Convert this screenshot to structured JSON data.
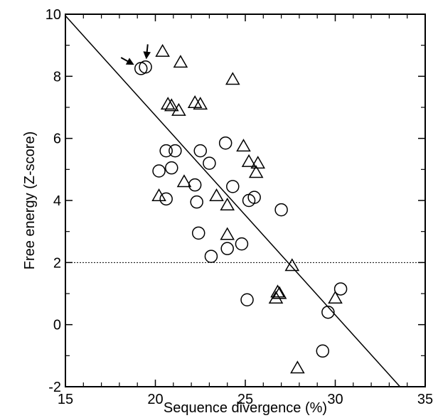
{
  "chart_data": {
    "type": "scatter",
    "title": "",
    "xlabel": "Sequence divergence (%)",
    "ylabel": "Free energy (Z-score)",
    "xlim": [
      15,
      35
    ],
    "ylim": [
      -2,
      10
    ],
    "xticks": [
      15,
      20,
      25,
      30,
      35
    ],
    "yticks": [
      -2,
      0,
      2,
      4,
      6,
      8,
      10
    ],
    "grid": false,
    "series": [
      {
        "marker": "circle",
        "points": [
          [
            19.2,
            8.25
          ],
          [
            19.45,
            8.3
          ],
          [
            20.2,
            4.95
          ],
          [
            20.6,
            5.6
          ],
          [
            20.6,
            4.05
          ],
          [
            20.9,
            5.05
          ],
          [
            21.1,
            5.6
          ],
          [
            22.2,
            4.5
          ],
          [
            22.3,
            3.95
          ],
          [
            22.4,
            2.95
          ],
          [
            22.5,
            5.6
          ],
          [
            23.0,
            5.2
          ],
          [
            23.1,
            2.2
          ],
          [
            23.9,
            5.85
          ],
          [
            24.0,
            2.45
          ],
          [
            24.3,
            4.45
          ],
          [
            24.8,
            2.6
          ],
          [
            25.1,
            0.8
          ],
          [
            25.2,
            4.0
          ],
          [
            25.5,
            4.1
          ],
          [
            27.0,
            3.7
          ],
          [
            29.3,
            -0.85
          ],
          [
            29.6,
            0.4
          ],
          [
            30.3,
            1.15
          ]
        ]
      },
      {
        "marker": "triangle",
        "points": [
          [
            20.4,
            8.8
          ],
          [
            20.2,
            4.15
          ],
          [
            20.7,
            7.1
          ],
          [
            20.9,
            7.05
          ],
          [
            21.3,
            6.9
          ],
          [
            21.4,
            8.45
          ],
          [
            21.6,
            4.6
          ],
          [
            22.2,
            7.15
          ],
          [
            22.5,
            7.1
          ],
          [
            23.4,
            4.15
          ],
          [
            24.0,
            3.85
          ],
          [
            24.0,
            2.9
          ],
          [
            24.3,
            7.9
          ],
          [
            24.9,
            5.75
          ],
          [
            25.2,
            5.25
          ],
          [
            25.6,
            4.9
          ],
          [
            25.7,
            5.2
          ],
          [
            26.7,
            0.85
          ],
          [
            26.8,
            1.05
          ],
          [
            26.9,
            1.0
          ],
          [
            27.6,
            1.9
          ],
          [
            27.9,
            -1.4
          ],
          [
            30.0,
            0.85
          ]
        ]
      }
    ],
    "fit_line": {
      "x": [
        15,
        33.6
      ],
      "y": [
        9.95,
        -2
      ]
    },
    "threshold_line": {
      "y": 2,
      "style": "dotted"
    },
    "annotations": [
      {
        "type": "arrow",
        "target": [
          19.2,
          8.25
        ]
      },
      {
        "type": "arrow",
        "target": [
          19.45,
          8.3
        ]
      }
    ]
  }
}
